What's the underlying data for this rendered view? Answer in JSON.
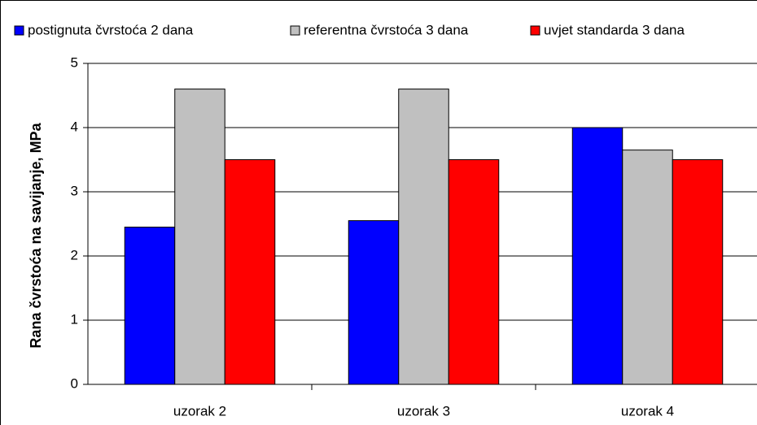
{
  "chart_data": {
    "type": "bar",
    "y_label": "Rana čvrstoća na savijanje, MPa",
    "categories": [
      "uzorak 2",
      "uzorak 3",
      "uzorak 4"
    ],
    "series": [
      {
        "name": "postignuta čvrstoća 2 dana",
        "color": "#0000ff",
        "values": [
          2.45,
          2.55,
          4.0
        ]
      },
      {
        "name": "referentna čvrstoća 3 dana",
        "color": "#c0c0c0",
        "values": [
          4.6,
          4.6,
          3.65
        ]
      },
      {
        "name": "uvjet standarda 3 dana",
        "color": "#ff0000",
        "values": [
          3.5,
          3.5,
          3.5
        ]
      }
    ],
    "ylim": [
      0,
      5
    ],
    "yticks": [
      0,
      1,
      2,
      3,
      4,
      5
    ],
    "grid": true,
    "legend": "top"
  }
}
